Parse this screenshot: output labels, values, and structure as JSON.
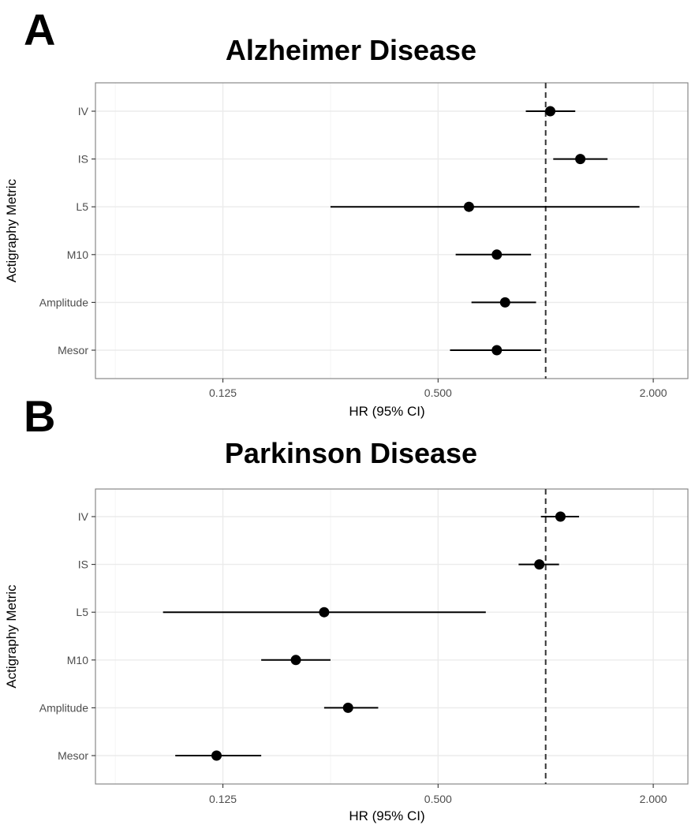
{
  "chart_data": [
    {
      "panel_label": "A",
      "type": "forest",
      "title": "Alzheimer Disease",
      "xlabel": "HR (95% CI)",
      "ylabel": "Actigraphy Metric",
      "x_scale": "log2",
      "xlim": [
        0.055,
        2.5
      ],
      "x_ticks": [
        0.125,
        0.5,
        2.0
      ],
      "x_tick_labels": [
        "0.125",
        "0.500",
        "2.000"
      ],
      "reference_line": 1.0,
      "categories": [
        "IV",
        "IS",
        "L5",
        "M10",
        "Amplitude",
        "Mesor"
      ],
      "estimates": [
        1.03,
        1.25,
        0.61,
        0.73,
        0.77,
        0.73
      ],
      "ci_lower": [
        0.88,
        1.05,
        0.25,
        0.56,
        0.62,
        0.54
      ],
      "ci_upper": [
        1.21,
        1.49,
        1.83,
        0.91,
        0.94,
        0.97
      ]
    },
    {
      "panel_label": "B",
      "type": "forest",
      "title": "Parkinson Disease",
      "xlabel": "HR (95% CI)",
      "ylabel": "Actigraphy Metric",
      "x_scale": "log2",
      "xlim": [
        0.055,
        2.5
      ],
      "x_ticks": [
        0.125,
        0.5,
        2.0
      ],
      "x_tick_labels": [
        "0.125",
        "0.500",
        "2.000"
      ],
      "reference_line": 1.0,
      "categories": [
        "IV",
        "IS",
        "L5",
        "M10",
        "Amplitude",
        "Mesor"
      ],
      "estimates": [
        1.1,
        0.96,
        0.24,
        0.2,
        0.28,
        0.12
      ],
      "ci_lower": [
        0.97,
        0.84,
        0.085,
        0.16,
        0.24,
        0.092
      ],
      "ci_upper": [
        1.24,
        1.09,
        0.68,
        0.25,
        0.34,
        0.16
      ]
    }
  ]
}
